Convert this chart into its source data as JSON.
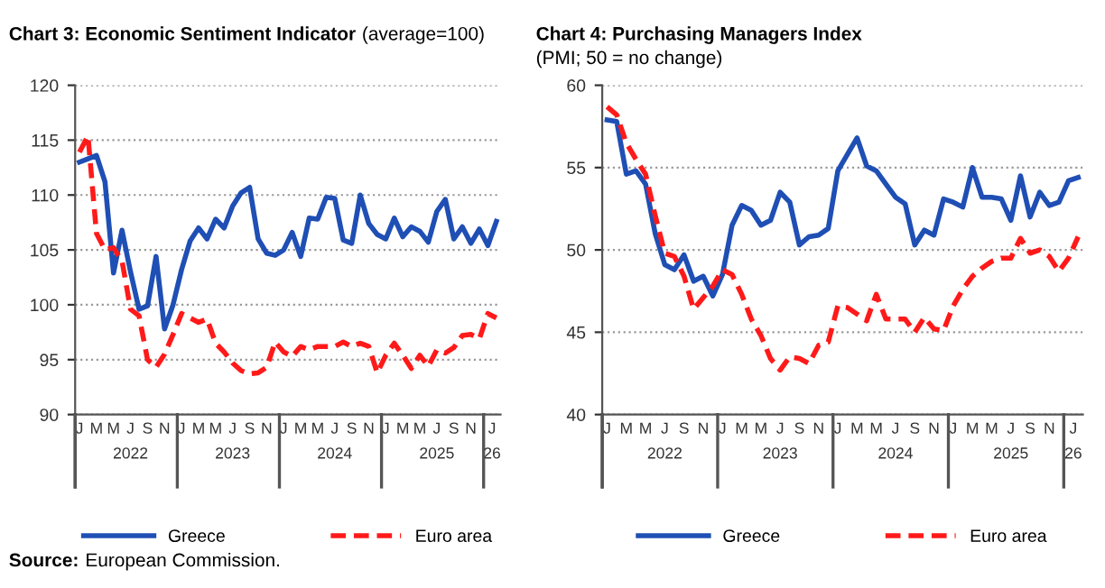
{
  "chart_data": [
    {
      "type": "line",
      "title": "Chart 3: Economic Sentiment Indicator",
      "subtitle": "(average=100)",
      "x": [
        "2022-01",
        "2022-02",
        "2022-03",
        "2022-04",
        "2022-05",
        "2022-06",
        "2022-07",
        "2022-08",
        "2022-09",
        "2022-10",
        "2022-11",
        "2022-12",
        "2023-01",
        "2023-02",
        "2023-03",
        "2023-04",
        "2023-05",
        "2023-06",
        "2023-07",
        "2023-08",
        "2023-09",
        "2023-10",
        "2023-11",
        "2023-12",
        "2024-01",
        "2024-02",
        "2024-03",
        "2024-04",
        "2024-05",
        "2024-06",
        "2024-07",
        "2024-08",
        "2024-09",
        "2024-10",
        "2024-11",
        "2024-12",
        "2025-01",
        "2025-02",
        "2025-03",
        "2025-04",
        "2025-05",
        "2025-06",
        "2025-07",
        "2025-08",
        "2025-09",
        "2025-10",
        "2025-11",
        "2025-12",
        "2026-01",
        "2026-02"
      ],
      "series": [
        {
          "name": "Greece",
          "color": "#1f4fb4",
          "line_style": "solid",
          "values": [
            113.0,
            113.3,
            113.6,
            111.2,
            102.9,
            106.8,
            103.0,
            99.6,
            99.9,
            104.4,
            97.8,
            100.0,
            103.2,
            105.8,
            107.0,
            106.0,
            107.8,
            107.0,
            109.0,
            110.2,
            110.7,
            106.0,
            104.7,
            104.5,
            105.0,
            106.6,
            104.4,
            107.9,
            107.8,
            109.8,
            109.7,
            105.9,
            105.6,
            110.0,
            107.4,
            106.4,
            106.0,
            107.9,
            106.2,
            107.1,
            106.7,
            105.7,
            108.5,
            109.6,
            106.0,
            107.1,
            105.6,
            106.9,
            105.4,
            107.6
          ]
        },
        {
          "name": "Euro area",
          "color": "#ff1a1a",
          "line_style": "dashed",
          "values": [
            113.9,
            115.4,
            106.5,
            105.0,
            105.2,
            104.0,
            99.6,
            99.0,
            95.0,
            94.3,
            95.5,
            97.3,
            99.2,
            98.8,
            98.4,
            98.7,
            96.5,
            95.7,
            94.7,
            94.0,
            93.7,
            93.8,
            94.3,
            96.6,
            95.7,
            95.3,
            96.2,
            95.9,
            96.2,
            96.2,
            96.2,
            96.6,
            96.2,
            96.5,
            96.2,
            93.8,
            95.4,
            96.5,
            95.4,
            94.2,
            95.4,
            94.4,
            95.9,
            95.6,
            96.1,
            97.2,
            97.3,
            96.9,
            99.2,
            98.8
          ]
        }
      ],
      "xlim": [
        "2021-12-16",
        "2026-02-16"
      ],
      "xticks": [
        {
          "value": "2022-01",
          "label": "J"
        },
        {
          "value": "2022-03",
          "label": "M"
        },
        {
          "value": "2022-05",
          "label": "M"
        },
        {
          "value": "2022-07",
          "label": "J\n2022"
        },
        {
          "value": "2022-09",
          "label": "S"
        },
        {
          "value": "2022-11",
          "label": "N"
        },
        {
          "value": "2023-01",
          "label": "J"
        },
        {
          "value": "2023-03",
          "label": "M"
        },
        {
          "value": "2023-05",
          "label": "M"
        },
        {
          "value": "2023-07",
          "label": "J\n2023"
        },
        {
          "value": "2023-09",
          "label": "S"
        },
        {
          "value": "2023-11",
          "label": "N"
        },
        {
          "value": "2024-01",
          "label": "J"
        },
        {
          "value": "2024-03",
          "label": "M"
        },
        {
          "value": "2024-05",
          "label": "M"
        },
        {
          "value": "2024-07",
          "label": "J\n2024"
        },
        {
          "value": "2024-09",
          "label": "S"
        },
        {
          "value": "2024-11",
          "label": "N"
        },
        {
          "value": "2025-01",
          "label": "J"
        },
        {
          "value": "2025-03",
          "label": "M"
        },
        {
          "value": "2025-05",
          "label": "M"
        },
        {
          "value": "2025-07",
          "label": "J\n2025"
        },
        {
          "value": "2025-09",
          "label": "S"
        },
        {
          "value": "2025-11",
          "label": "N"
        },
        {
          "value": "2026-01-16",
          "label": "J\n26"
        }
      ],
      "ylim": [
        90,
        120
      ],
      "yticks": [
        90,
        95,
        100,
        105,
        110,
        115,
        120
      ],
      "grid": "y",
      "legend": "bottom",
      "marker": "none",
      "annotations": [
        "Source: European Commission."
      ]
    },
    {
      "type": "line",
      "title": "Chart 4: Purchasing Managers Index",
      "subtitle": "(PMI; 50 = no change)",
      "x": [
        "2022-01",
        "2022-02",
        "2022-03",
        "2022-04",
        "2022-05",
        "2022-06",
        "2022-07",
        "2022-08",
        "2022-09",
        "2022-10",
        "2022-11",
        "2022-12",
        "2023-01",
        "2023-02",
        "2023-03",
        "2023-04",
        "2023-05",
        "2023-06",
        "2023-07",
        "2023-08",
        "2023-09",
        "2023-10",
        "2023-11",
        "2023-12",
        "2024-01",
        "2024-02",
        "2024-03",
        "2024-04",
        "2024-05",
        "2024-06",
        "2024-07",
        "2024-08",
        "2024-09",
        "2024-10",
        "2024-11",
        "2024-12",
        "2025-01",
        "2025-02",
        "2025-03",
        "2025-04",
        "2025-05",
        "2025-06",
        "2025-07",
        "2025-08",
        "2025-09",
        "2025-10",
        "2025-11",
        "2025-12",
        "2026-01",
        "2026-02"
      ],
      "series": [
        {
          "name": "Greece",
          "color": "#1f4fb4",
          "line_style": "solid",
          "values": [
            57.9,
            57.8,
            54.6,
            54.8,
            54.0,
            51.0,
            49.1,
            48.8,
            49.7,
            48.1,
            48.4,
            47.2,
            48.5,
            51.5,
            52.7,
            52.4,
            51.5,
            51.8,
            53.5,
            52.9,
            50.3,
            50.8,
            50.9,
            51.3,
            54.8,
            55.8,
            56.8,
            55.1,
            54.8,
            54.0,
            53.2,
            52.8,
            50.3,
            51.2,
            50.9,
            53.1,
            52.9,
            52.6,
            55.0,
            53.2,
            53.2,
            53.1,
            51.8,
            54.5,
            52.0,
            53.5,
            52.7,
            52.9,
            54.2,
            54.4
          ]
        },
        {
          "name": "Euro area",
          "color": "#ff1a1a",
          "line_style": "dashed",
          "values": [
            58.7,
            58.2,
            56.5,
            55.5,
            54.6,
            52.1,
            49.8,
            49.6,
            48.4,
            46.4,
            47.1,
            47.8,
            48.8,
            48.5,
            47.3,
            45.8,
            44.8,
            43.4,
            42.7,
            43.5,
            43.4,
            43.1,
            44.2,
            44.4,
            46.6,
            46.5,
            46.1,
            45.7,
            47.3,
            45.8,
            45.8,
            45.8,
            45.0,
            45.9,
            45.2,
            45.1,
            46.6,
            47.6,
            48.4,
            48.9,
            49.3,
            49.5,
            49.5,
            50.7,
            49.8,
            50.0,
            49.6,
            48.7,
            49.5,
            50.8
          ]
        }
      ],
      "xlim": [
        "2021-12-16",
        "2026-02-16"
      ],
      "xticks": [
        {
          "value": "2022-01",
          "label": "J"
        },
        {
          "value": "2022-03",
          "label": "M"
        },
        {
          "value": "2022-05",
          "label": "M"
        },
        {
          "value": "2022-07",
          "label": "J\n2022"
        },
        {
          "value": "2022-09",
          "label": "S"
        },
        {
          "value": "2022-11",
          "label": "N"
        },
        {
          "value": "2023-01",
          "label": "J"
        },
        {
          "value": "2023-03",
          "label": "M"
        },
        {
          "value": "2023-05",
          "label": "M"
        },
        {
          "value": "2023-07",
          "label": "J\n2023"
        },
        {
          "value": "2023-09",
          "label": "S"
        },
        {
          "value": "2023-11",
          "label": "N"
        },
        {
          "value": "2024-01",
          "label": "J"
        },
        {
          "value": "2024-03",
          "label": "M"
        },
        {
          "value": "2024-05",
          "label": "M"
        },
        {
          "value": "2024-07",
          "label": "J\n2024"
        },
        {
          "value": "2024-09",
          "label": "S"
        },
        {
          "value": "2024-11",
          "label": "N"
        },
        {
          "value": "2025-01",
          "label": "J"
        },
        {
          "value": "2025-03",
          "label": "M"
        },
        {
          "value": "2025-05",
          "label": "M"
        },
        {
          "value": "2025-07",
          "label": "J\n2025"
        },
        {
          "value": "2025-09",
          "label": "S"
        },
        {
          "value": "2025-11",
          "label": "N"
        },
        {
          "value": "2026-01-16",
          "label": "J\n26"
        }
      ],
      "ylim": [
        40,
        60
      ],
      "yticks": [
        40,
        45,
        50,
        55,
        60
      ],
      "grid": "y",
      "legend": "bottom",
      "marker": "none"
    }
  ]
}
